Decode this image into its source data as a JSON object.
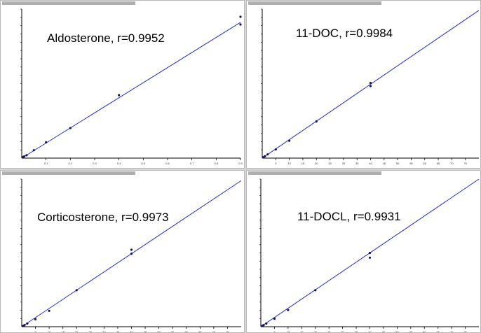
{
  "colors": {
    "fit_line": "#1f2fd6",
    "points": "#14145a",
    "axis": "#000000",
    "title_strip": "#1a1a1a"
  },
  "chart_data": [
    {
      "type": "scatter",
      "title": "Aldosterone, r=0.9952",
      "xlim": [
        0,
        0.9
      ],
      "ylim": [
        0,
        0.062
      ],
      "x_ticks": [
        "0.1",
        "0.2",
        "0.3",
        "0.4",
        "0.5",
        "0.6",
        "0.7",
        "0.8",
        "0.9"
      ],
      "points": [
        [
          0.005,
          0.0004
        ],
        [
          0.01,
          0.0007
        ],
        [
          0.02,
          0.0012
        ],
        [
          0.05,
          0.0033
        ],
        [
          0.1,
          0.0066
        ],
        [
          0.2,
          0.0125
        ],
        [
          0.4,
          0.0262
        ],
        [
          0.9,
          0.0588
        ],
        [
          0.9,
          0.0556
        ]
      ],
      "fit": [
        [
          0,
          0
        ],
        [
          0.9,
          0.0565
        ]
      ]
    },
    {
      "type": "scatter",
      "title": "11-DOC, r=0.9984",
      "xlim": [
        0,
        80
      ],
      "ylim": [
        0,
        240
      ],
      "x_ticks": [
        "5",
        "10",
        "15",
        "20",
        "25",
        "30",
        "35",
        "40",
        "45",
        "50",
        "55",
        "60",
        "65",
        "70",
        "75"
      ],
      "points": [
        [
          0.5,
          1.5
        ],
        [
          1,
          3
        ],
        [
          2,
          6
        ],
        [
          5,
          14
        ],
        [
          10,
          28
        ],
        [
          20,
          59
        ],
        [
          40,
          121
        ],
        [
          40,
          116
        ]
      ],
      "fit": [
        [
          0,
          0
        ],
        [
          80,
          238
        ]
      ]
    },
    {
      "type": "scatter",
      "title": "Corticosterone, r=0.9973",
      "xlim": [
        0,
        80
      ],
      "ylim": [
        0,
        9.3
      ],
      "x_ticks": [
        "5",
        "10",
        "15",
        "20",
        "25",
        "30",
        "35",
        "40",
        "45",
        "50",
        "55",
        "60",
        "65",
        "70",
        "75"
      ],
      "points": [
        [
          0.5,
          0.05
        ],
        [
          1,
          0.1
        ],
        [
          2,
          0.2
        ],
        [
          5,
          0.47
        ],
        [
          10,
          1.0
        ],
        [
          20,
          2.3
        ],
        [
          40,
          4.85
        ],
        [
          40,
          4.6
        ]
      ],
      "fit": [
        [
          0,
          0
        ],
        [
          80,
          9.2
        ]
      ]
    },
    {
      "type": "scatter",
      "title": "11-DOCL, r=0.9931",
      "xlim": [
        0,
        80
      ],
      "ylim": [
        0,
        9.3
      ],
      "x_ticks": [
        "5",
        "10",
        "15",
        "20",
        "25",
        "30",
        "35",
        "40",
        "45",
        "50",
        "55",
        "60",
        "65",
        "70",
        "75"
      ],
      "points": [
        [
          0.5,
          0.05
        ],
        [
          1,
          0.1
        ],
        [
          2,
          0.2
        ],
        [
          5,
          0.5
        ],
        [
          10,
          1.05
        ],
        [
          20,
          2.3
        ],
        [
          40,
          4.65
        ],
        [
          40,
          4.35
        ]
      ],
      "fit": [
        [
          0,
          0
        ],
        [
          80,
          9.3
        ]
      ]
    }
  ]
}
